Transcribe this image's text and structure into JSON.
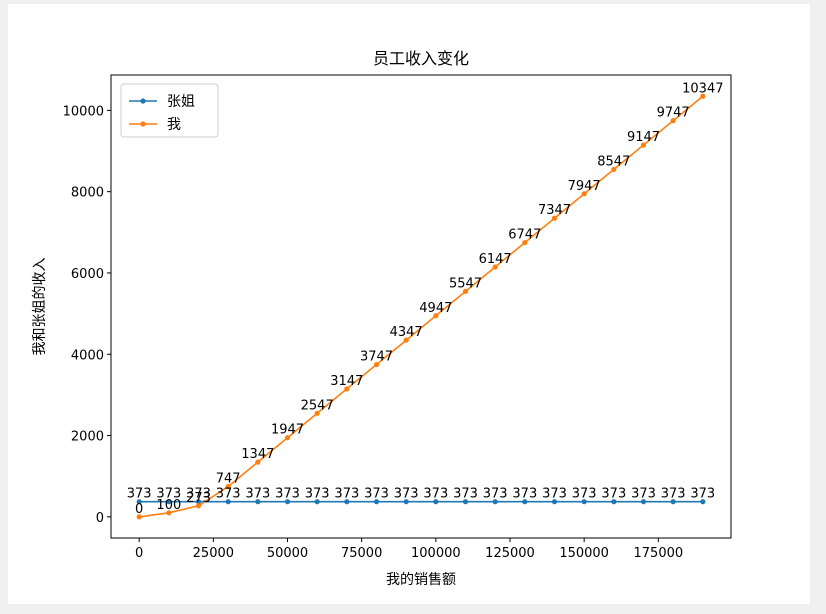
{
  "chart_data": {
    "type": "line",
    "title": "员工收入变化",
    "xlabel": "我的销售额",
    "ylabel": "我和张姐的收入",
    "xlim": [
      -9500,
      199500
    ],
    "ylim": [
      -520,
      10870
    ],
    "x_ticks": [
      0,
      25000,
      50000,
      75000,
      100000,
      125000,
      150000,
      175000
    ],
    "x_tick_labels": [
      "0",
      "25000",
      "50000",
      "75000",
      "100000",
      "125000",
      "150000",
      "175000"
    ],
    "y_ticks": [
      0,
      2000,
      4000,
      6000,
      8000,
      10000
    ],
    "y_tick_labels": [
      "0",
      "2000",
      "4000",
      "6000",
      "8000",
      "10000"
    ],
    "grid": false,
    "legend_position": "upper-left",
    "x": [
      0,
      10000,
      20000,
      30000,
      40000,
      50000,
      60000,
      70000,
      80000,
      90000,
      100000,
      110000,
      120000,
      130000,
      140000,
      150000,
      160000,
      170000,
      180000,
      190000
    ],
    "series": [
      {
        "name": "张姐",
        "color": "#1f77b4",
        "values": [
          373,
          373,
          373,
          373,
          373,
          373,
          373,
          373,
          373,
          373,
          373,
          373,
          373,
          373,
          373,
          373,
          373,
          373,
          373,
          373
        ]
      },
      {
        "name": "我",
        "color": "#ff7f0e",
        "values": [
          0,
          100,
          273,
          747,
          1347,
          1947,
          2547,
          3147,
          3747,
          4347,
          4947,
          5547,
          6147,
          6747,
          7347,
          7947,
          8547,
          9147,
          9747,
          10347
        ]
      }
    ]
  }
}
